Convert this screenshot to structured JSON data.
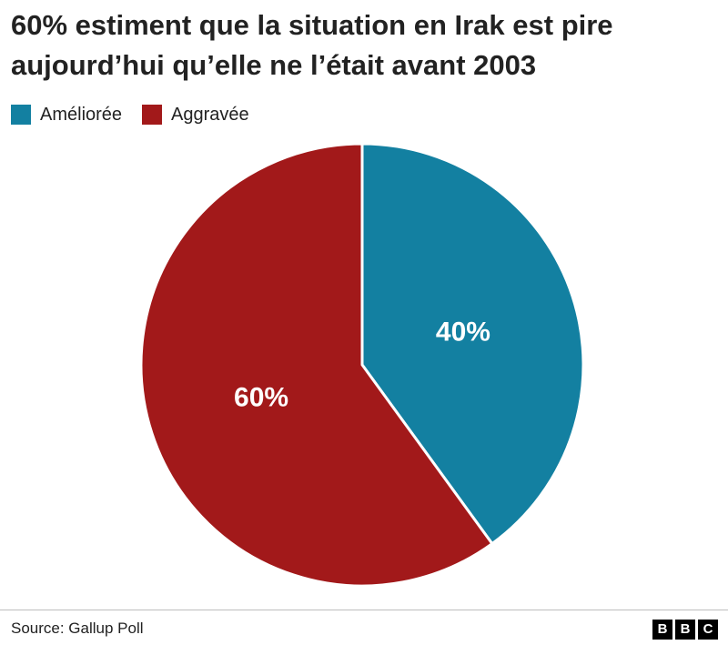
{
  "chart_data": {
    "type": "pie",
    "title_lines": [
      "60% estiment que la situation en Irak est pire",
      "aujourd’hui qu’elle ne l’était avant 2003"
    ],
    "legend_position": "top-left",
    "slices": [
      {
        "label": "Améliorée",
        "value": 40,
        "display": "40%",
        "color": "#1380a1"
      },
      {
        "label": "Aggravée",
        "value": 60,
        "display": "60%",
        "color": "#a2191a"
      }
    ]
  },
  "footer": {
    "source": "Source: Gallup Poll",
    "logo_letters": [
      "B",
      "B",
      "C"
    ]
  }
}
